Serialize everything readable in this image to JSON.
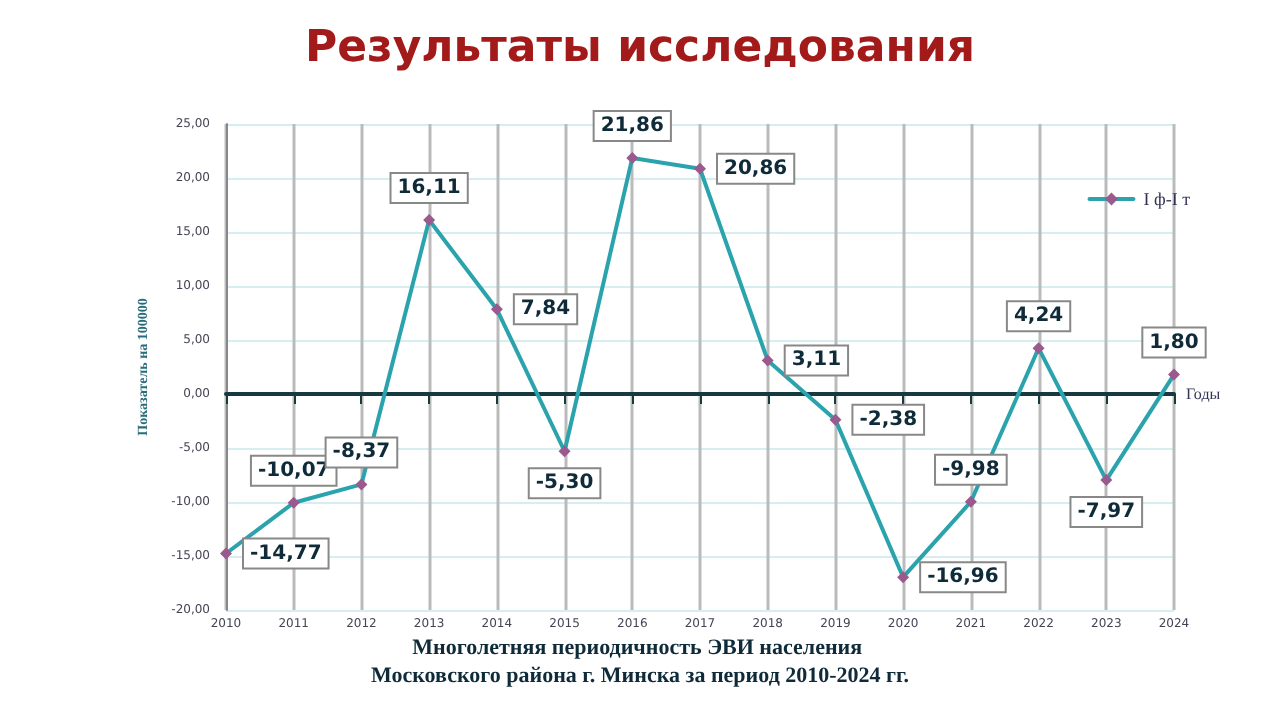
{
  "chart_data": {
    "type": "line",
    "title": "Результаты исследования",
    "xlabel": "Годы",
    "ylabel": "Показатель на 100000",
    "categories": [
      "2010",
      "2011",
      "2012",
      "2013",
      "2014",
      "2015",
      "2016",
      "2017",
      "2018",
      "2019",
      "2020",
      "2021",
      "2022",
      "2023",
      "2024"
    ],
    "series": [
      {
        "name": "I ф-I т",
        "color": "#2ba3ad",
        "values": [
          -14.77,
          -10.07,
          -8.37,
          16.11,
          7.84,
          -5.3,
          21.86,
          20.86,
          3.11,
          -2.38,
          -16.96,
          -9.98,
          4.24,
          -7.97,
          1.8
        ],
        "value_labels": [
          "-14,77",
          "-10,07",
          "-8,37",
          "16,11",
          "7,84",
          "-5,30",
          "21,86",
          "20,86",
          "3,11",
          "-2,38",
          "-16,96",
          "-9,98",
          "4,24",
          "-7,97",
          "1,80"
        ]
      }
    ],
    "ylim": [
      -20,
      25
    ],
    "yticks": [
      {
        "value": -20,
        "label": "-20,00"
      },
      {
        "value": -15,
        "label": "-15,00"
      },
      {
        "value": -10,
        "label": "-10,00"
      },
      {
        "value": -5,
        "label": "-5,00"
      },
      {
        "value": 0,
        "label": "0,00"
      },
      {
        "value": 5,
        "label": "5,00"
      },
      {
        "value": 10,
        "label": "10,00"
      },
      {
        "value": 15,
        "label": "15,00"
      },
      {
        "value": 20,
        "label": "20,00"
      },
      {
        "value": 25,
        "label": "25,00"
      }
    ],
    "grid": true,
    "legend": "top right",
    "marker": "diamond",
    "line_style": "solid",
    "annotations": [
      "Многолетняя периодичность ЭВИ населения Московского района г. Минска за период 2010-2024 гг."
    ]
  }
}
